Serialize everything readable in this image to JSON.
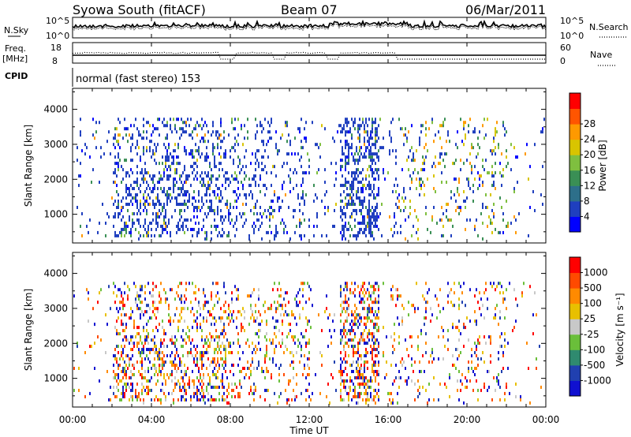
{
  "header": {
    "station": "Syowa South (fitACF)",
    "beam": "Beam 07",
    "date": "06/Mar/2011"
  },
  "time_axis": {
    "ticks": [
      "00:00",
      "04:00",
      "08:00",
      "12:00",
      "16:00",
      "20:00",
      "00:00"
    ],
    "label": "Time UT"
  },
  "noise_panel": {
    "left_label": "N.Sky",
    "right_label": "N.Search",
    "left_ticks": [
      "10^5",
      "10^0"
    ],
    "right_ticks": [
      "10^5",
      "10^0"
    ]
  },
  "freq_panel": {
    "left_label_1": "Freq.",
    "left_label_2": "[MHz]",
    "right_label": "Nave",
    "left_ticks": [
      "18",
      "8"
    ],
    "right_ticks": [
      "60",
      "0"
    ]
  },
  "cpid": {
    "label": "CPID",
    "value": "normal (fast stereo) 153"
  },
  "colors": {
    "power": [
      "#0000ff",
      "#1f3fbf",
      "#2d6f8a",
      "#3a8f55",
      "#7fbf3f",
      "#d8c400",
      "#ff9900",
      "#ff5500",
      "#ff0000"
    ],
    "velocity": [
      "#1010d0",
      "#2040b0",
      "#2f8a6f",
      "#6abf3a",
      "#c8c8c8",
      "#e8c000",
      "#ff8a00",
      "#ff4a00",
      "#ff0000"
    ]
  },
  "chart_data": [
    {
      "type": "heatmap",
      "panel": "power",
      "ylabel": "Slant Range [km]",
      "y_ticks": [
        "1000",
        "2000",
        "3000",
        "4000"
      ],
      "ylim": [
        180,
        4600
      ],
      "xlim": [
        0,
        24
      ],
      "colorbar_label": "Power [dB]",
      "colorbar_ticks": [
        "4",
        "8",
        "12",
        "16",
        "20",
        "24",
        "28"
      ],
      "colorbar_range": [
        0,
        30
      ]
    },
    {
      "type": "heatmap",
      "panel": "velocity",
      "ylabel": "Slant Range [km]",
      "y_ticks": [
        "1000",
        "2000",
        "3000",
        "4000"
      ],
      "ylim": [
        180,
        4600
      ],
      "xlim": [
        0,
        24
      ],
      "colorbar_label": "Velocity [m s⁻¹]",
      "colorbar_ticks": [
        "1000",
        "500",
        "100",
        "25",
        "-25",
        "-100",
        "-500",
        "-1000"
      ],
      "colorbar_range": [
        1000,
        -1000
      ]
    }
  ]
}
